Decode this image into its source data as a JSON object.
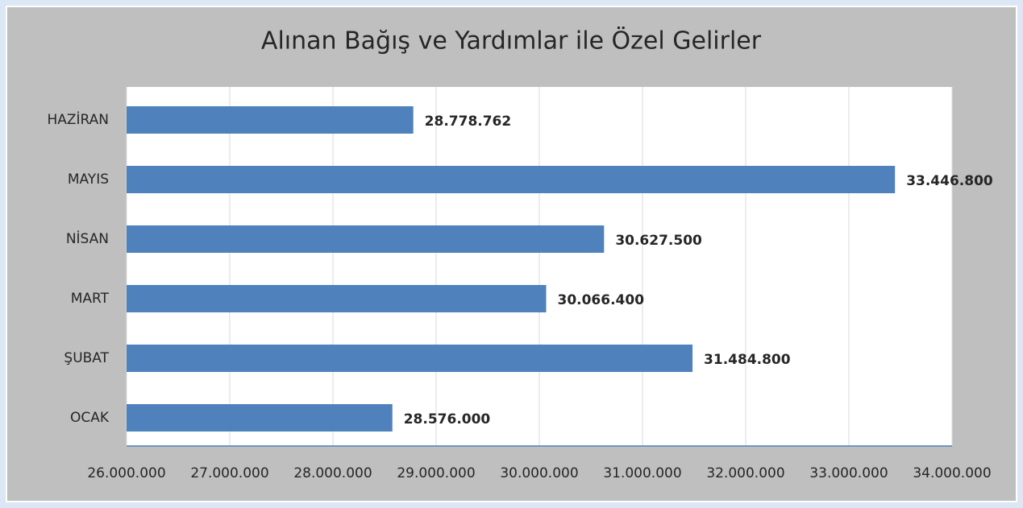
{
  "chart_data": {
    "type": "bar",
    "orientation": "horizontal",
    "title": "Alınan Bağış ve Yardımlar ile Özel Gelirler",
    "categories": [
      "OCAK",
      "ŞUBAT",
      "MART",
      "NİSAN",
      "MAYIS",
      "HAZİRAN"
    ],
    "values": [
      28576000,
      31484800,
      30066400,
      30627500,
      33446800,
      28778762
    ],
    "value_labels": [
      "28.576.000",
      "31.484.800",
      "30.066.400",
      "30.627.500",
      "33.446.800",
      "28.778.762"
    ],
    "color": "#4f81bd",
    "xlim": [
      26000000,
      34000000
    ],
    "xticks": [
      {
        "value": 26000000,
        "label": "26.000.000"
      },
      {
        "value": 27000000,
        "label": "27.000.000"
      },
      {
        "value": 28000000,
        "label": "28.000.000"
      },
      {
        "value": 29000000,
        "label": "29.000.000"
      },
      {
        "value": 30000000,
        "label": "30.000.000"
      },
      {
        "value": 31000000,
        "label": "31.000.000"
      },
      {
        "value": 32000000,
        "label": "32.000.000"
      },
      {
        "value": 33000000,
        "label": "33.000.000"
      },
      {
        "value": 34000000,
        "label": "34.000.000"
      }
    ],
    "grid": true
  }
}
